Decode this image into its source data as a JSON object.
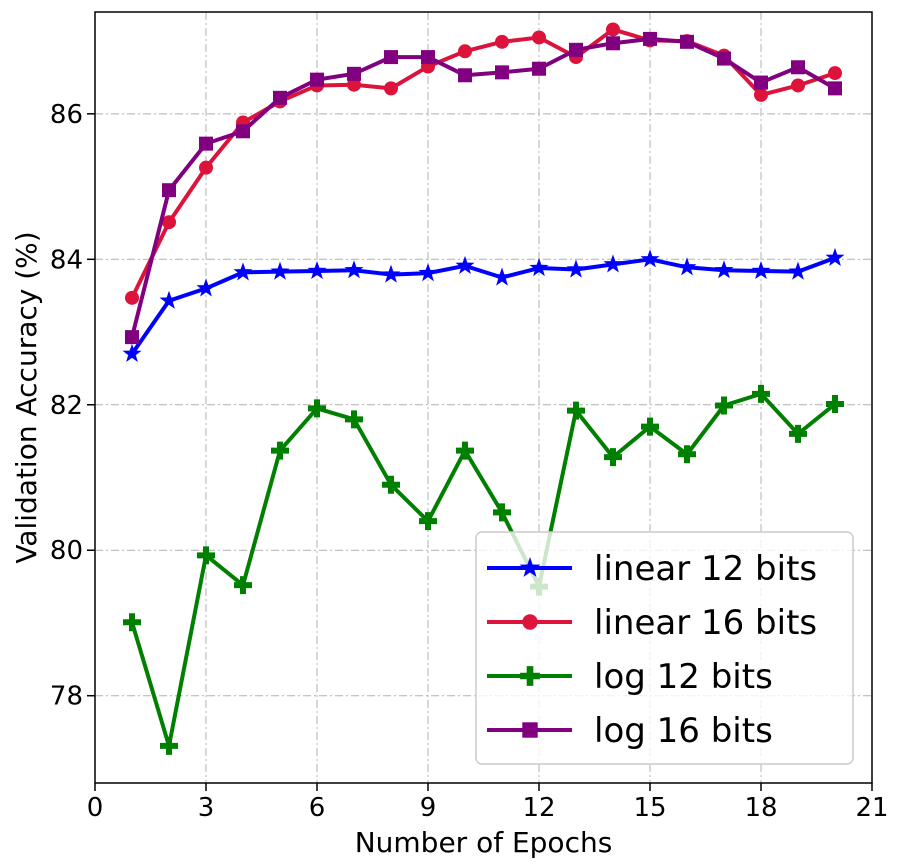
{
  "chart_data": {
    "type": "line",
    "xlabel": "Number of Epochs",
    "ylabel": "Validation Accuracy (%)",
    "xlim": [
      0,
      21
    ],
    "ylim": [
      76.8,
      87.4
    ],
    "xticks": [
      0,
      3,
      6,
      9,
      12,
      15,
      18,
      21
    ],
    "yticks": [
      78,
      80,
      82,
      84,
      86
    ],
    "xtick_labels": [
      "0",
      "3",
      "6",
      "9",
      "12",
      "15",
      "18",
      "21"
    ],
    "ytick_labels": [
      "78",
      "80",
      "82",
      "84",
      "86"
    ],
    "grid": true,
    "legend_position": "bottom-right",
    "x": [
      1,
      2,
      3,
      4,
      5,
      6,
      7,
      8,
      9,
      10,
      11,
      12,
      13,
      14,
      15,
      16,
      17,
      18,
      19,
      20
    ],
    "series": [
      {
        "name": "linear 12 bits",
        "color": "#0000ff",
        "marker": "star",
        "values": [
          82.7,
          83.43,
          83.6,
          83.82,
          83.83,
          83.84,
          83.85,
          83.79,
          83.81,
          83.91,
          83.75,
          83.88,
          83.86,
          83.93,
          84.0,
          83.89,
          83.85,
          83.84,
          83.83,
          84.02
        ]
      },
      {
        "name": "linear 16 bits",
        "color": "#dc143c",
        "marker": "circle",
        "values": [
          83.47,
          84.51,
          85.26,
          85.88,
          86.17,
          86.39,
          86.4,
          86.35,
          86.65,
          86.86,
          86.99,
          87.05,
          86.78,
          87.16,
          87.01,
          87.0,
          86.8,
          86.26,
          86.39,
          86.56
        ]
      },
      {
        "name": "log 12 bits",
        "color": "#008000",
        "marker": "plus",
        "values": [
          79.01,
          77.31,
          79.93,
          79.52,
          81.37,
          81.95,
          81.8,
          80.9,
          80.4,
          81.37,
          80.52,
          79.5,
          81.92,
          81.28,
          81.7,
          81.32,
          81.99,
          82.15,
          81.6,
          82.01
        ]
      },
      {
        "name": "log 16 bits",
        "color": "#800080",
        "marker": "square",
        "values": [
          82.93,
          84.95,
          85.59,
          85.76,
          86.22,
          86.47,
          86.55,
          86.78,
          86.78,
          86.53,
          86.57,
          86.62,
          86.88,
          86.97,
          87.03,
          86.99,
          86.76,
          86.43,
          86.64,
          86.35
        ]
      }
    ]
  }
}
